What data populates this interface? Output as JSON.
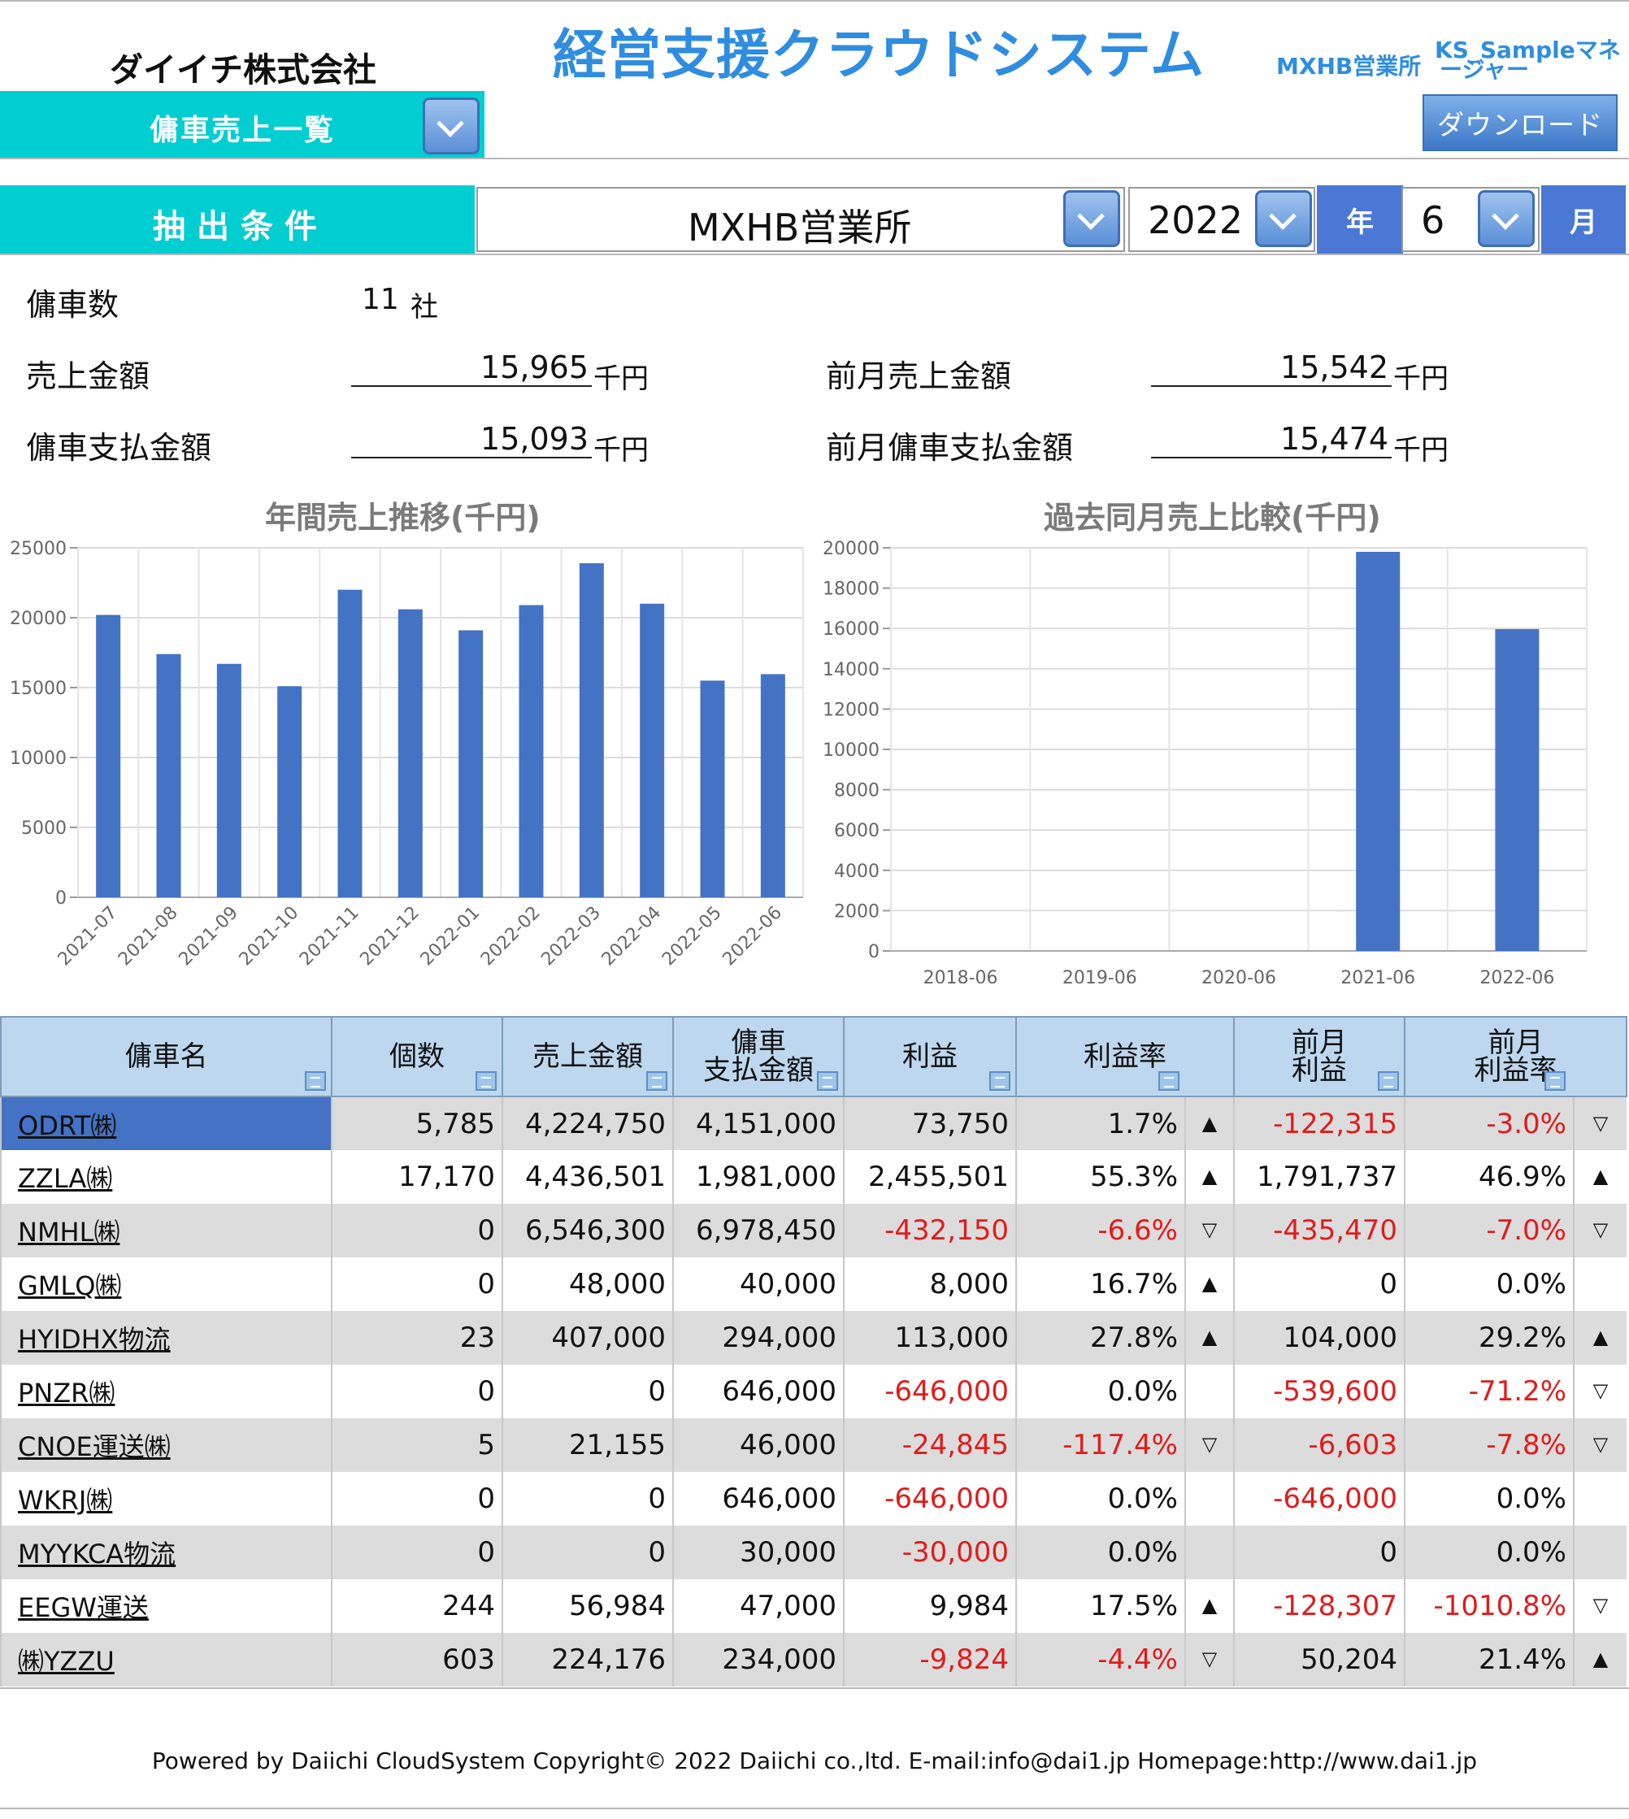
{
  "header": {
    "company": "ダイイチ株式会社",
    "app_title": "経営支援クラウドシステム",
    "office": "MXHB営業所",
    "user_line1": "KS_Sampleマネ",
    "user_line2": "ージャー",
    "menu_label": "傭車売上一覧",
    "download": "ダウンロード"
  },
  "filter": {
    "label": "抽出条件",
    "office": "MXHB営業所",
    "year": "2022",
    "year_unit": "年",
    "month": "6",
    "month_unit": "月"
  },
  "summary": {
    "count_label": "傭車数",
    "count_value": "11",
    "count_unit": "社",
    "sales_label": "売上金額",
    "sales_value": "15,965",
    "sales_unit": "千円",
    "prev_sales_label": "前月売上金額",
    "prev_sales_value": "15,542",
    "prev_sales_unit": "千円",
    "pay_label": "傭車支払金額",
    "pay_value": "15,093",
    "pay_unit": "千円",
    "prev_pay_label": "前月傭車支払金額",
    "prev_pay_value": "15,474",
    "prev_pay_unit": "千円"
  },
  "chart_data": [
    {
      "type": "bar",
      "title": "年間売上推移(千円)",
      "categories": [
        "2021-07",
        "2021-08",
        "2021-09",
        "2021-10",
        "2021-11",
        "2021-12",
        "2022-01",
        "2022-02",
        "2022-03",
        "2022-04",
        "2022-05",
        "2022-06"
      ],
      "values": [
        20200,
        17400,
        16700,
        15100,
        22000,
        20600,
        19100,
        20900,
        23900,
        21000,
        15500,
        15965
      ],
      "ylim": [
        0,
        25000
      ],
      "yticks": [
        "25000",
        "20000",
        "15000",
        "10000",
        "5000",
        "0"
      ],
      "color": "#4472c4",
      "grid": true
    },
    {
      "type": "bar",
      "title": "過去同月売上比較(千円)",
      "categories": [
        "2018-06",
        "2019-06",
        "2020-06",
        "2021-06",
        "2022-06"
      ],
      "values": [
        0,
        0,
        0,
        19800,
        15965
      ],
      "ylim": [
        0,
        20000
      ],
      "yticks": [
        "20000",
        "18000",
        "16000",
        "14000",
        "12000",
        "10000",
        "8000",
        "6000",
        "4000",
        "2000",
        "0"
      ],
      "color": "#4472c4",
      "grid": true
    }
  ],
  "table": {
    "headers": {
      "name": "傭車名",
      "count": "個数",
      "sales": "売上金額",
      "pay_l1": "傭車",
      "pay_l2": "支払金額",
      "profit": "利益",
      "rate": "利益率",
      "prev_profit_l1": "前月",
      "prev_profit_l2": "利益",
      "prev_rate_l1": "前月",
      "prev_rate_l2": "利益率"
    },
    "rows": [
      {
        "name": "ODRT㈱",
        "count": "5,785",
        "sales": "4,224,750",
        "pay": "4,151,000",
        "profit": "73,750",
        "rate": "1.7%",
        "tri1": "▲",
        "prev_profit": "-122,315",
        "prev_rate": "-3.0%",
        "tri2": "▽"
      },
      {
        "name": "ZZLA㈱",
        "count": "17,170",
        "sales": "4,436,501",
        "pay": "1,981,000",
        "profit": "2,455,501",
        "rate": "55.3%",
        "tri1": "▲",
        "prev_profit": "1,791,737",
        "prev_rate": "46.9%",
        "tri2": "▲"
      },
      {
        "name": "NMHL㈱",
        "count": "0",
        "sales": "6,546,300",
        "pay": "6,978,450",
        "profit": "-432,150",
        "rate": "-6.6%",
        "tri1": "▽",
        "prev_profit": "-435,470",
        "prev_rate": "-7.0%",
        "tri2": "▽"
      },
      {
        "name": "GMLQ㈱",
        "count": "0",
        "sales": "48,000",
        "pay": "40,000",
        "profit": "8,000",
        "rate": "16.7%",
        "tri1": "▲",
        "prev_profit": "0",
        "prev_rate": "0.0%",
        "tri2": ""
      },
      {
        "name": "HYIDHX物流",
        "count": "23",
        "sales": "407,000",
        "pay": "294,000",
        "profit": "113,000",
        "rate": "27.8%",
        "tri1": "▲",
        "prev_profit": "104,000",
        "prev_rate": "29.2%",
        "tri2": "▲"
      },
      {
        "name": "PNZR㈱",
        "count": "0",
        "sales": "0",
        "pay": "646,000",
        "profit": "-646,000",
        "rate": "0.0%",
        "tri1": "",
        "prev_profit": "-539,600",
        "prev_rate": "-71.2%",
        "tri2": "▽"
      },
      {
        "name": "CNOE運送㈱",
        "count": "5",
        "sales": "21,155",
        "pay": "46,000",
        "profit": "-24,845",
        "rate": "-117.4%",
        "tri1": "▽",
        "prev_profit": "-6,603",
        "prev_rate": "-7.8%",
        "tri2": "▽"
      },
      {
        "name": "WKRJ㈱",
        "count": "0",
        "sales": "0",
        "pay": "646,000",
        "profit": "-646,000",
        "rate": "0.0%",
        "tri1": "",
        "prev_profit": "-646,000",
        "prev_rate": "0.0%",
        "tri2": ""
      },
      {
        "name": "MYYKCA物流",
        "count": "0",
        "sales": "0",
        "pay": "30,000",
        "profit": "-30,000",
        "rate": "0.0%",
        "tri1": "",
        "prev_profit": "0",
        "prev_rate": "0.0%",
        "tri2": ""
      },
      {
        "name": "EEGW運送",
        "count": "244",
        "sales": "56,984",
        "pay": "47,000",
        "profit": "9,984",
        "rate": "17.5%",
        "tri1": "▲",
        "prev_profit": "-128,307",
        "prev_rate": "-1010.8%",
        "tri2": "▽"
      },
      {
        "name": "㈱YZZU",
        "count": "603",
        "sales": "224,176",
        "pay": "234,000",
        "profit": "-9,824",
        "rate": "-4.4%",
        "tri1": "▽",
        "prev_profit": "50,204",
        "prev_rate": "21.4%",
        "tri2": "▲"
      }
    ]
  },
  "footer": "Powered by Daiichi CloudSystem Copyright© 2022 Daiichi co.,ltd. E-mail:info@dai1.jp Homepage:http://www.dai1.jp"
}
